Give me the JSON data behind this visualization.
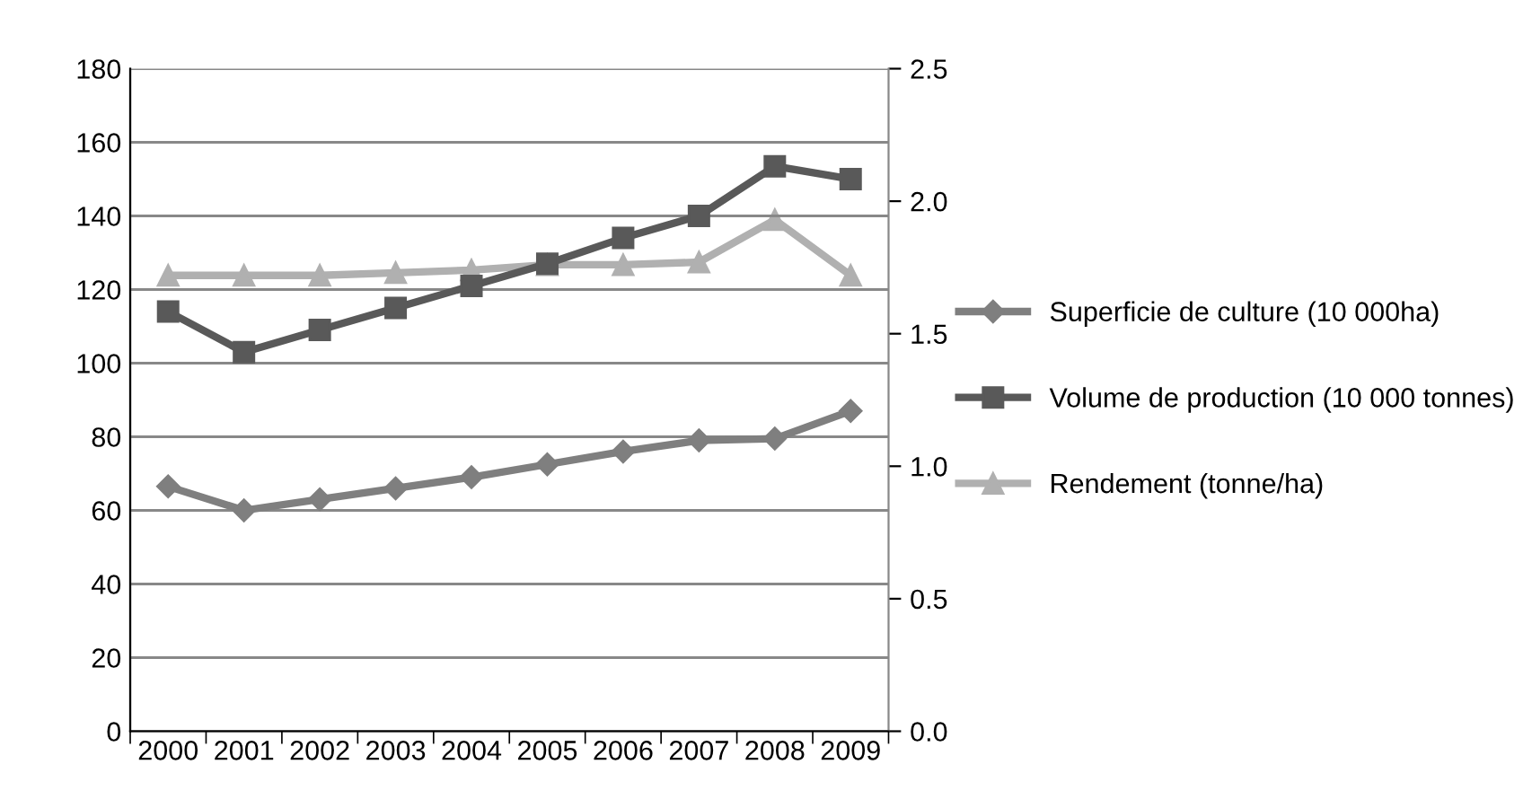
{
  "chart_data": {
    "type": "line",
    "categories": [
      "2000",
      "2001",
      "2002",
      "2003",
      "2004",
      "2005",
      "2006",
      "2007",
      "2008",
      "2009"
    ],
    "series": [
      {
        "name": "Superficie de culture (10 000ha)",
        "color": "#7f7f7f",
        "marker": "diamond",
        "values": [
          66.5,
          60,
          63,
          66,
          69,
          72.5,
          76,
          79,
          79.5,
          87
        ]
      },
      {
        "name": "Volume de production (10 000 tonnes)",
        "color": "#595959",
        "marker": "square",
        "values": [
          114,
          103,
          109,
          115,
          121,
          127,
          134,
          140,
          153.5,
          150
        ]
      },
      {
        "name": "Rendement (tonne/ha)",
        "color": "#b0b0b0",
        "marker": "triangle",
        "axis": "y2",
        "values": [
          1.72,
          1.72,
          1.72,
          1.73,
          1.74,
          1.76,
          1.76,
          1.77,
          1.93,
          1.72
        ]
      }
    ],
    "ylim": [
      0,
      180
    ],
    "yticks": [
      0,
      20,
      40,
      60,
      80,
      100,
      120,
      140,
      160,
      180
    ],
    "y2lim": [
      0,
      2.5
    ],
    "y2ticks": [
      {
        "value": 0,
        "label": "0.0"
      },
      {
        "value": 0.5,
        "label": "0.5"
      },
      {
        "value": 1,
        "label": "1.0"
      },
      {
        "value": 1.5,
        "label": "1.5"
      },
      {
        "value": 2,
        "label": "2.0"
      },
      {
        "value": 2.5,
        "label": "2.5"
      }
    ],
    "grid": "y",
    "legend": "right"
  }
}
